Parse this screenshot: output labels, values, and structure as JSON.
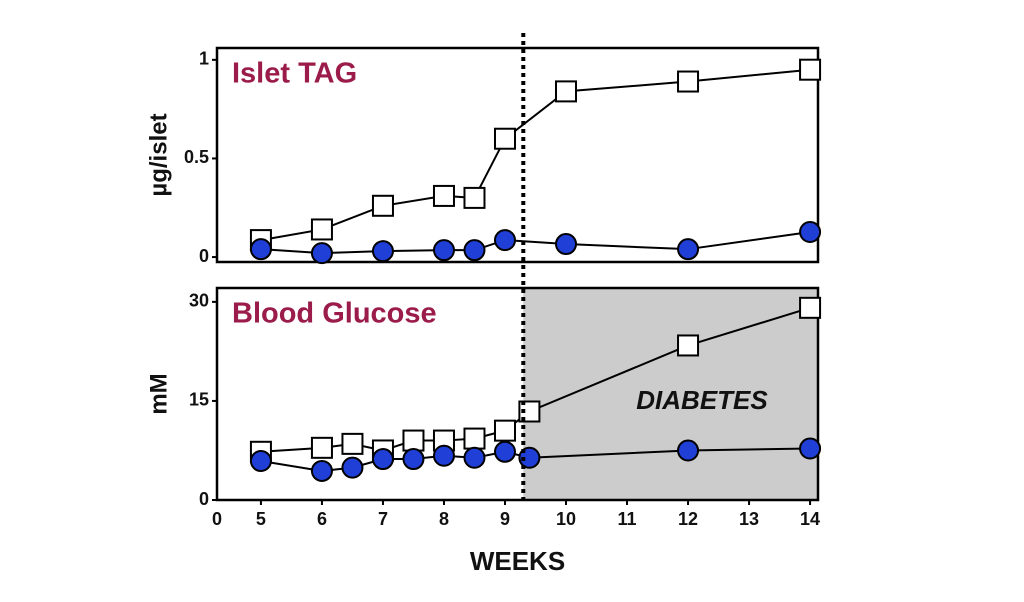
{
  "chart_data": [
    {
      "type": "line",
      "title": "Islet TAG",
      "ylabel": "µg/islet",
      "xlim": [
        4.28,
        14.13
      ],
      "ylim": [
        -0.025,
        1.06
      ],
      "yticks": [
        0,
        0.5,
        1
      ],
      "series": [
        {
          "color": "#ffffff",
          "marker": "square",
          "x": [
            5,
            6,
            7,
            8,
            8.5,
            9,
            10,
            12,
            14
          ],
          "values": [
            0.086,
            0.14,
            0.26,
            0.31,
            0.3,
            0.6,
            0.84,
            0.89,
            0.95
          ]
        },
        {
          "color": "#1f3fd6",
          "marker": "circle",
          "x": [
            5,
            6,
            7,
            8,
            8.5,
            9,
            10,
            12,
            14
          ],
          "values": [
            0.04,
            0.02,
            0.03,
            0.035,
            0.035,
            0.086,
            0.066,
            0.04,
            0.127
          ]
        }
      ]
    },
    {
      "type": "line",
      "title": "Blood Glucose",
      "ylabel": "mM",
      "xlabel": "WEEKS",
      "x_origin_label": "0",
      "annotation": "DIABETES",
      "shaded_from": 9.3,
      "shade_color": "#cccccc",
      "xlim": [
        4.28,
        14.13
      ],
      "xticks": [
        5,
        6,
        7,
        8,
        9,
        10,
        11,
        12,
        13,
        14
      ],
      "ylim": [
        0,
        32.1
      ],
      "yticks": [
        0,
        15,
        30
      ],
      "series": [
        {
          "color": "#ffffff",
          "marker": "square",
          "x": [
            5,
            6,
            6.5,
            7,
            7.5,
            8,
            8.5,
            9,
            9.4,
            12,
            14
          ],
          "values": [
            7.3,
            7.9,
            8.5,
            7.5,
            9.0,
            9.0,
            9.3,
            10.5,
            13.4,
            23.4,
            29.1
          ]
        },
        {
          "color": "#1f3fd6",
          "marker": "circle",
          "x": [
            5,
            6,
            6.5,
            7,
            7.5,
            8,
            8.5,
            9,
            9.4,
            12,
            14
          ],
          "values": [
            5.9,
            4.4,
            4.9,
            6.2,
            6.2,
            6.7,
            6.4,
            7.3,
            6.4,
            7.5,
            7.8
          ]
        }
      ]
    }
  ]
}
